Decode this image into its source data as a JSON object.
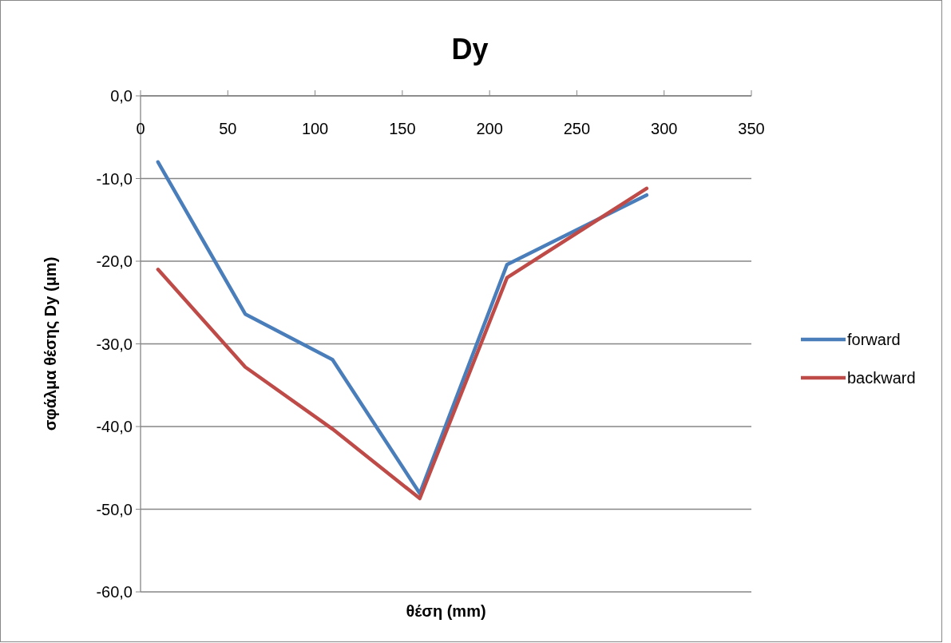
{
  "chart_data": {
    "type": "line",
    "title": "Dy",
    "xlabel": "θέση (mm)",
    "ylabel": "σφάλμα θέσης Dy (μm)",
    "x": [
      10,
      60,
      110,
      160,
      210,
      290
    ],
    "series": [
      {
        "name": "forward",
        "color": "#4a7ebb",
        "values": [
          -8.0,
          -26.4,
          -31.9,
          -48.1,
          -20.4,
          -12.0
        ]
      },
      {
        "name": "backward",
        "color": "#be4b48",
        "values": [
          -21.0,
          -32.8,
          -40.3,
          -48.7,
          -22.0,
          -11.2
        ]
      }
    ],
    "xlim": [
      0,
      350
    ],
    "xticks": [
      0,
      50,
      100,
      150,
      200,
      250,
      300,
      350
    ],
    "ylim": [
      -60,
      0
    ],
    "yticks": [
      {
        "value": 0,
        "label": "0,0"
      },
      {
        "value": -10,
        "label": "-10,0"
      },
      {
        "value": -20,
        "label": "-20,0"
      },
      {
        "value": -30,
        "label": "-30,0"
      },
      {
        "value": -40,
        "label": "-40,0"
      },
      {
        "value": -50,
        "label": "-50,0"
      },
      {
        "value": -60,
        "label": "-60,0"
      }
    ],
    "grid": "y",
    "legend": "right",
    "marker": "none",
    "line_style": "solid"
  }
}
